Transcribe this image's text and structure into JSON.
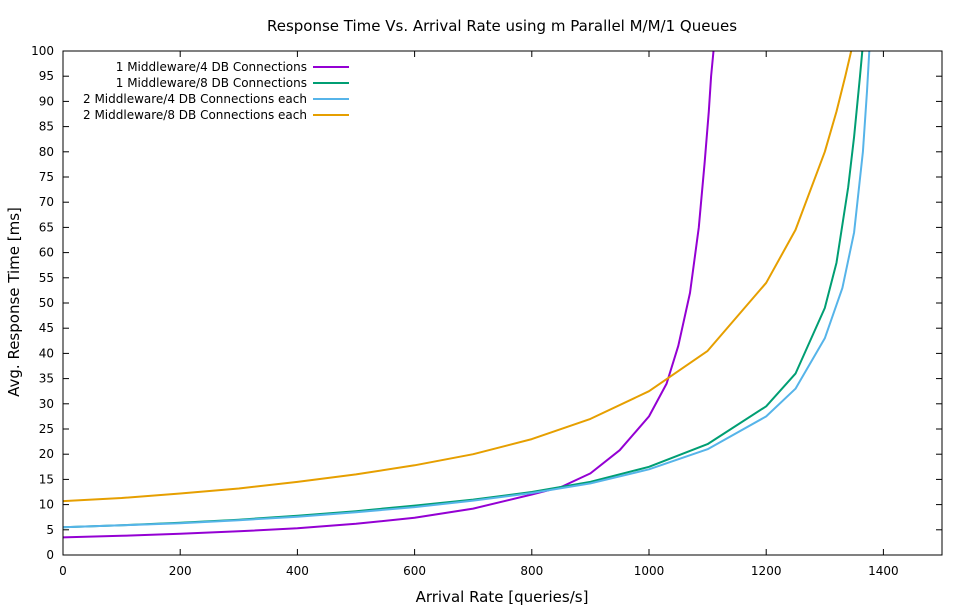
{
  "chart_data": {
    "type": "line",
    "title": "Response Time Vs. Arrival Rate using m Parallel M/M/1 Queues",
    "xlabel": "Arrival Rate [queries/s]",
    "ylabel": "Avg. Response Time [ms]",
    "xlim": [
      0,
      1500
    ],
    "ylim": [
      0,
      100
    ],
    "x_ticks": [
      0,
      200,
      400,
      600,
      800,
      1000,
      1200,
      1400
    ],
    "y_ticks": [
      0,
      5,
      10,
      15,
      20,
      25,
      30,
      35,
      40,
      45,
      50,
      55,
      60,
      65,
      70,
      75,
      80,
      85,
      90,
      95,
      100
    ],
    "grid": false,
    "legend_position": "top-left",
    "series": [
      {
        "name": "1 Middleware/4 DB Connections",
        "color": "#9400d3",
        "points": [
          [
            0,
            3.5
          ],
          [
            100,
            3.8
          ],
          [
            200,
            4.2
          ],
          [
            300,
            4.7
          ],
          [
            400,
            5.3
          ],
          [
            500,
            6.2
          ],
          [
            600,
            7.4
          ],
          [
            700,
            9.2
          ],
          [
            800,
            12.0
          ],
          [
            850,
            13.5
          ],
          [
            900,
            16.2
          ],
          [
            950,
            20.8
          ],
          [
            1000,
            27.5
          ],
          [
            1030,
            34.0
          ],
          [
            1050,
            41.5
          ],
          [
            1070,
            52.0
          ],
          [
            1085,
            65.0
          ],
          [
            1095,
            78.0
          ],
          [
            1102,
            88.0
          ],
          [
            1106,
            95.0
          ],
          [
            1110,
            100
          ]
        ]
      },
      {
        "name": "1 Middleware/8 DB Connections",
        "color": "#009e73",
        "points": [
          [
            0,
            5.5
          ],
          [
            100,
            5.9
          ],
          [
            200,
            6.4
          ],
          [
            300,
            7.0
          ],
          [
            400,
            7.8
          ],
          [
            500,
            8.7
          ],
          [
            600,
            9.8
          ],
          [
            700,
            11.0
          ],
          [
            800,
            12.5
          ],
          [
            900,
            14.5
          ],
          [
            1000,
            17.5
          ],
          [
            1100,
            22.0
          ],
          [
            1200,
            29.5
          ],
          [
            1250,
            36.0
          ],
          [
            1300,
            49.0
          ],
          [
            1320,
            58.0
          ],
          [
            1340,
            73.0
          ],
          [
            1350,
            83.0
          ],
          [
            1360,
            95.0
          ],
          [
            1364,
            100
          ]
        ]
      },
      {
        "name": "2 Middleware/4 DB Connections each",
        "color": "#56b4e9",
        "points": [
          [
            0,
            5.5
          ],
          [
            100,
            5.9
          ],
          [
            200,
            6.3
          ],
          [
            300,
            6.9
          ],
          [
            400,
            7.6
          ],
          [
            500,
            8.5
          ],
          [
            600,
            9.5
          ],
          [
            700,
            10.8
          ],
          [
            800,
            12.3
          ],
          [
            900,
            14.2
          ],
          [
            1000,
            17.0
          ],
          [
            1100,
            21.0
          ],
          [
            1200,
            27.5
          ],
          [
            1250,
            33.0
          ],
          [
            1300,
            43.0
          ],
          [
            1330,
            53.0
          ],
          [
            1350,
            64.0
          ],
          [
            1365,
            80.0
          ],
          [
            1372,
            92.0
          ],
          [
            1376,
            100
          ]
        ]
      },
      {
        "name": "2 Middleware/8 DB Connections each",
        "color": "#e69f00",
        "points": [
          [
            0,
            10.7
          ],
          [
            100,
            11.3
          ],
          [
            200,
            12.2
          ],
          [
            300,
            13.2
          ],
          [
            400,
            14.5
          ],
          [
            500,
            16.0
          ],
          [
            600,
            17.8
          ],
          [
            700,
            20.0
          ],
          [
            800,
            23.0
          ],
          [
            900,
            27.0
          ],
          [
            1000,
            32.5
          ],
          [
            1100,
            40.5
          ],
          [
            1200,
            54.0
          ],
          [
            1250,
            64.5
          ],
          [
            1300,
            80.0
          ],
          [
            1320,
            88.0
          ],
          [
            1335,
            95.0
          ],
          [
            1345,
            100
          ]
        ]
      }
    ]
  }
}
